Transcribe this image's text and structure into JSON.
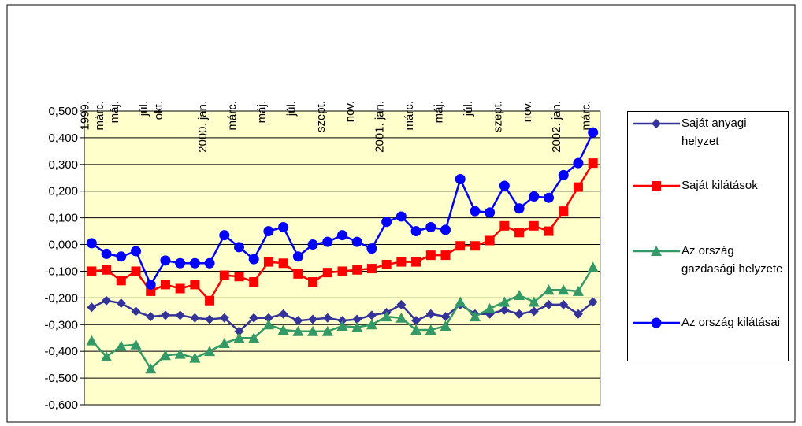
{
  "chart_data": {
    "type": "line",
    "categories": [
      "1999.",
      "márc.",
      "máj.",
      null,
      "júl.",
      "okt.",
      null,
      null,
      "2000. jan.",
      null,
      "márc.",
      null,
      "máj.",
      null,
      "júl.",
      null,
      "szept.",
      null,
      "nov.",
      null,
      "2001. jan.",
      null,
      "márc.",
      null,
      "máj.",
      null,
      "júl.",
      null,
      "szept.",
      null,
      "nov.",
      null,
      "2002. jan.",
      null,
      "márc."
    ],
    "series": [
      {
        "name": "Saját anyagi helyzet",
        "color": "#333399",
        "marker": "diamond",
        "values": [
          -0.235,
          -0.21,
          -0.22,
          -0.25,
          -0.27,
          -0.265,
          -0.265,
          -0.275,
          -0.28,
          -0.275,
          -0.325,
          -0.275,
          -0.275,
          -0.26,
          -0.285,
          -0.28,
          -0.275,
          -0.285,
          -0.28,
          -0.265,
          -0.255,
          -0.225,
          -0.285,
          -0.26,
          -0.27,
          -0.225,
          -0.26,
          -0.26,
          -0.245,
          -0.26,
          -0.25,
          -0.225,
          -0.225,
          -0.26,
          -0.215
        ]
      },
      {
        "name": "Saját kilátások",
        "color": "#ff0000",
        "marker": "square",
        "values": [
          -0.1,
          -0.095,
          -0.135,
          -0.1,
          -0.175,
          -0.15,
          -0.165,
          -0.15,
          -0.21,
          -0.115,
          -0.12,
          -0.14,
          -0.065,
          -0.07,
          -0.11,
          -0.14,
          -0.105,
          -0.1,
          -0.095,
          -0.09,
          -0.075,
          -0.065,
          -0.065,
          -0.04,
          -0.04,
          -0.005,
          -0.005,
          0.015,
          0.07,
          0.045,
          0.07,
          0.05,
          0.125,
          0.215,
          0.305
        ]
      },
      {
        "name": "Az ország gazdasági helyzete",
        "color": "#339966",
        "marker": "triangle",
        "values": [
          -0.36,
          -0.42,
          -0.38,
          -0.375,
          -0.465,
          -0.415,
          -0.41,
          -0.425,
          -0.4,
          -0.37,
          -0.35,
          -0.35,
          -0.3,
          -0.32,
          -0.325,
          -0.325,
          -0.325,
          -0.305,
          -0.31,
          -0.3,
          -0.27,
          -0.275,
          -0.32,
          -0.32,
          -0.305,
          -0.215,
          -0.27,
          -0.24,
          -0.215,
          -0.19,
          -0.215,
          -0.17,
          -0.17,
          -0.175,
          -0.085
        ]
      },
      {
        "name": "Az ország kilátásai",
        "color": "#0000ff",
        "marker": "circle",
        "values": [
          0.005,
          -0.035,
          -0.045,
          -0.025,
          -0.15,
          -0.06,
          -0.07,
          -0.07,
          -0.07,
          0.035,
          -0.01,
          -0.055,
          0.05,
          0.065,
          -0.045,
          0.0,
          0.01,
          0.035,
          0.01,
          -0.015,
          0.085,
          0.105,
          0.05,
          0.065,
          0.055,
          0.245,
          0.125,
          0.12,
          0.22,
          0.135,
          0.18,
          0.175,
          0.26,
          0.305,
          0.42
        ]
      }
    ],
    "ylim": [
      -0.6,
      0.5
    ],
    "yticks": [
      {
        "value": -0.6,
        "label": "-0,600"
      },
      {
        "value": -0.5,
        "label": "-0,500"
      },
      {
        "value": -0.4,
        "label": "-0,400"
      },
      {
        "value": -0.3,
        "label": "-0,300"
      },
      {
        "value": -0.2,
        "label": "-0,200"
      },
      {
        "value": -0.1,
        "label": "-0,100"
      },
      {
        "value": 0,
        "label": "0,000"
      },
      {
        "value": 0.1,
        "label": "0,100"
      },
      {
        "value": 0.2,
        "label": "0,200"
      },
      {
        "value": 0.3,
        "label": "0,300"
      },
      {
        "value": 0.4,
        "label": "0,400"
      },
      {
        "value": 0.5,
        "label": "0,500"
      }
    ],
    "grid": true,
    "plot_background": "#ffffcc",
    "legend": "right"
  }
}
